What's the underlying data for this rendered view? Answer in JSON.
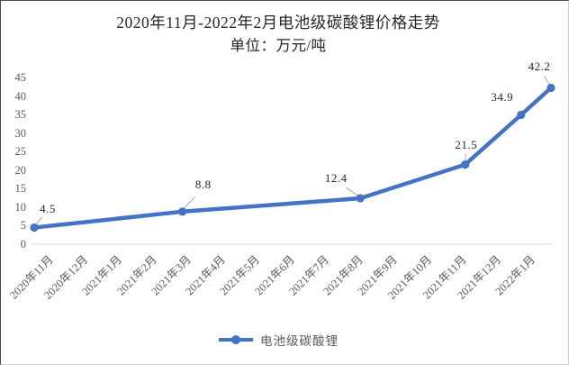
{
  "chart_data": {
    "type": "line",
    "title": "2020年11月-2022年2月电池级碳酸锂价格走势",
    "subtitle": "单位：万元/吨",
    "unit": "万元/吨",
    "ylim": [
      0,
      45
    ],
    "y_ticks": [
      0,
      5,
      10,
      15,
      20,
      25,
      30,
      35,
      40,
      45
    ],
    "x_tick_labels": [
      "2020年11月",
      "2020年12月",
      "2021年1月",
      "2021年2月",
      "2021年3月",
      "2021年4月",
      "2021年5月",
      "2021年6月",
      "2021年7月",
      "2021年8月",
      "2021年9月",
      "2021年10月",
      "2021年11月",
      "2021年12月",
      "2022年1月"
    ],
    "grid": "none",
    "legend_position": "bottom",
    "legend_label": "电池级碳酸锂",
    "line_color": "#4472c4",
    "axis_line_color": "#d9d9d9",
    "tick_text_color": "#595959",
    "data_label_color": "#262626",
    "leader_line_color": "#a6a6a6",
    "series": [
      {
        "name": "电池级碳酸锂",
        "color": "#4472c4",
        "points": [
          {
            "month": "2020年11月",
            "value": 4.5,
            "x_frac": 0.0
          },
          {
            "month": "2021年3月",
            "value": 8.8,
            "x_frac": 0.287
          },
          {
            "month": "2021年8月",
            "value": 12.4,
            "x_frac": 0.631
          },
          {
            "month": "2021年11月",
            "value": 21.5,
            "x_frac": 0.834
          },
          {
            "month": "2022年1月",
            "value": 34.9,
            "x_frac": 0.942
          },
          {
            "month": "2022年2月",
            "value": 42.2,
            "x_frac": 1.0
          }
        ]
      }
    ]
  }
}
